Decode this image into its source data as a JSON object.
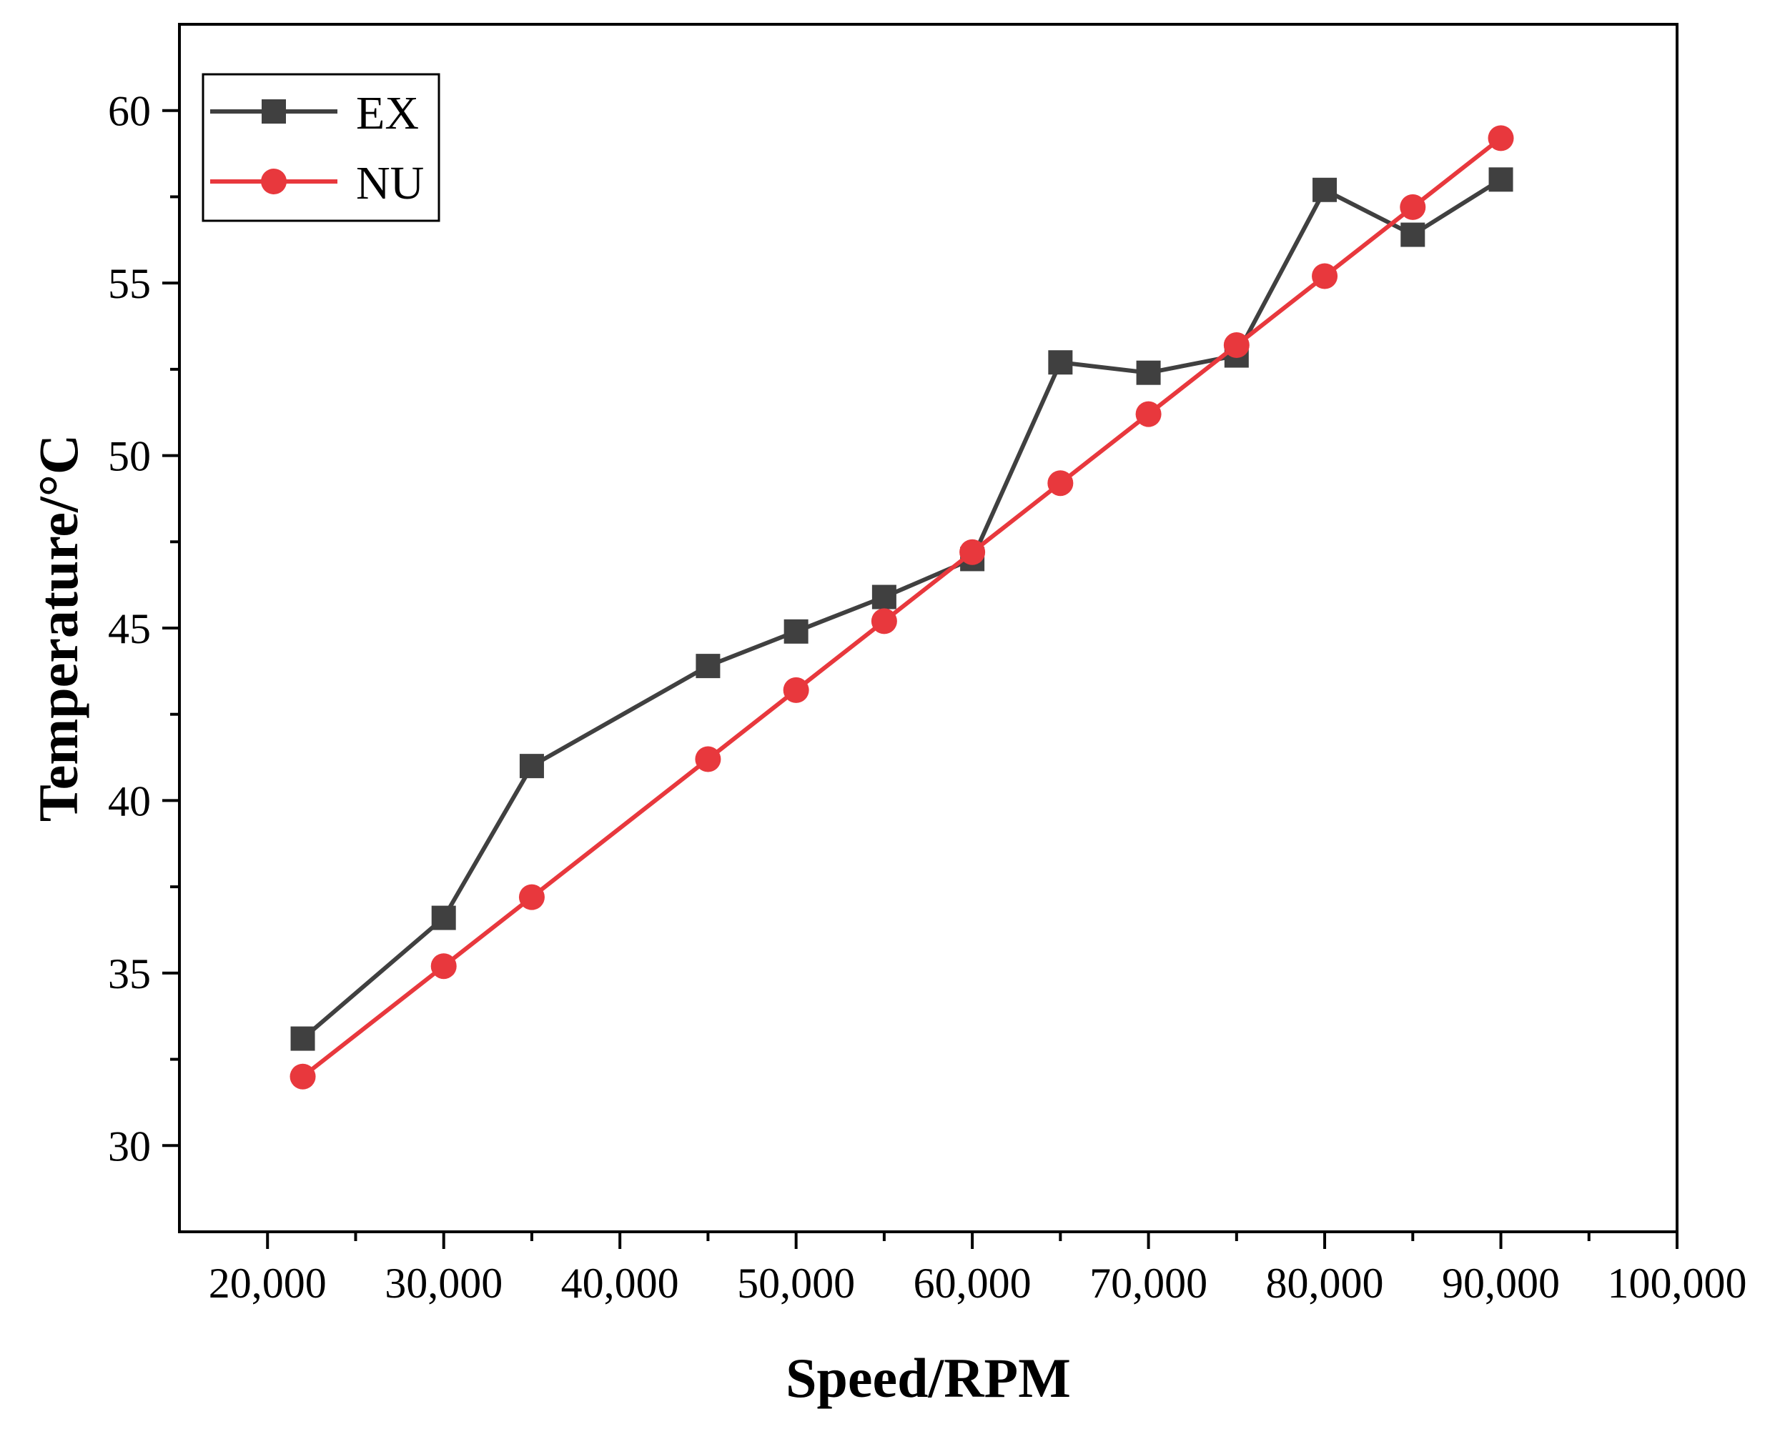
{
  "chart_data": {
    "type": "line",
    "title": "",
    "xlabel": "Speed/RPM",
    "ylabel": "Temperature/°C",
    "xlim": [
      15000,
      100000
    ],
    "ylim": [
      27.5,
      62.5
    ],
    "x_ticks": [
      20000,
      30000,
      40000,
      50000,
      60000,
      70000,
      80000,
      90000,
      100000
    ],
    "x_tick_labels": [
      "20,000",
      "30,000",
      "40,000",
      "50,000",
      "60,000",
      "70,000",
      "80,000",
      "90,000",
      "100,000"
    ],
    "y_ticks": [
      30,
      35,
      40,
      45,
      50,
      55,
      60
    ],
    "y_tick_labels": [
      "30",
      "35",
      "40",
      "45",
      "50",
      "55",
      "60"
    ],
    "y_minor_ticks": [
      32.5,
      37.5,
      42.5,
      47.5,
      52.5,
      57.5
    ],
    "x_minor_ticks": [
      25000,
      35000,
      45000,
      55000,
      65000,
      75000,
      85000,
      95000
    ],
    "grid": false,
    "legend_position": "top-left",
    "series": [
      {
        "name": "EX",
        "color": "#404040",
        "marker": "square",
        "x": [
          22000,
          30000,
          35000,
          45000,
          50000,
          55000,
          60000,
          65000,
          70000,
          75000,
          80000,
          85000,
          90000
        ],
        "values": [
          33.1,
          36.6,
          41.0,
          43.9,
          44.9,
          45.9,
          47.0,
          52.7,
          52.4,
          52.9,
          57.7,
          56.4,
          58.0
        ]
      },
      {
        "name": "NU",
        "color": "#e8383d",
        "marker": "circle",
        "x": [
          22000,
          30000,
          35000,
          45000,
          50000,
          55000,
          60000,
          65000,
          70000,
          75000,
          80000,
          85000,
          90000
        ],
        "values": [
          32.0,
          35.2,
          37.2,
          41.2,
          43.2,
          45.2,
          47.2,
          49.2,
          51.2,
          53.2,
          55.2,
          57.2,
          59.2
        ]
      }
    ]
  }
}
